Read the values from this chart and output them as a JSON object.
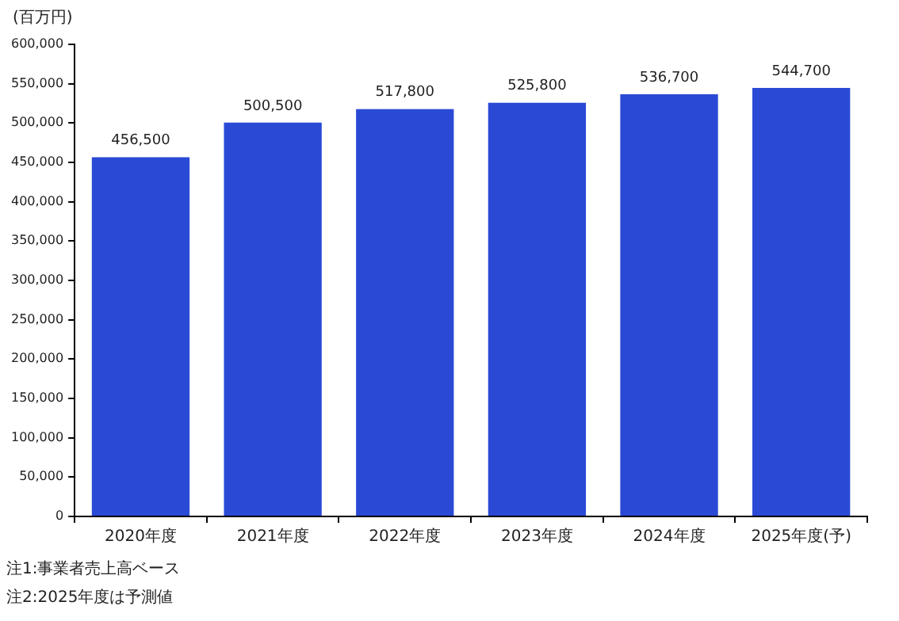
{
  "chart_data": {
    "type": "bar",
    "ylabel": "(百万円)",
    "categories": [
      "2020年度",
      "2021年度",
      "2022年度",
      "2023年度",
      "2024年度",
      "2025年度(予)"
    ],
    "values": [
      456500,
      500500,
      517800,
      525800,
      536700,
      544700
    ],
    "color": "#2a4ad6",
    "value_labels": [
      "456,500",
      "500,500",
      "517,800",
      "525,800",
      "536,700",
      "544,700"
    ],
    "ylim": [
      0,
      600000
    ],
    "yticks": [
      0,
      {
        "value": 50000,
        "label": "50,000"
      },
      {
        "value": 100000,
        "label": "100,000"
      },
      {
        "value": 150000,
        "label": "150,000"
      },
      {
        "value": 200000,
        "label": "200,000"
      },
      {
        "value": 250000,
        "label": "250,000"
      },
      {
        "value": 300000,
        "label": "300,000"
      },
      {
        "value": 350000,
        "label": "350,000"
      },
      {
        "value": 400000,
        "label": "400,000"
      },
      {
        "value": 450000,
        "label": "450,000"
      },
      {
        "value": 500000,
        "label": "500,000"
      },
      {
        "value": 550000,
        "label": "550,000"
      },
      {
        "value": 600000,
        "label": "600,000"
      }
    ],
    "grid": false,
    "legend": false,
    "annotations": [
      "注1:事業者売上高ベース",
      "注2:2025年度は予測値"
    ]
  }
}
